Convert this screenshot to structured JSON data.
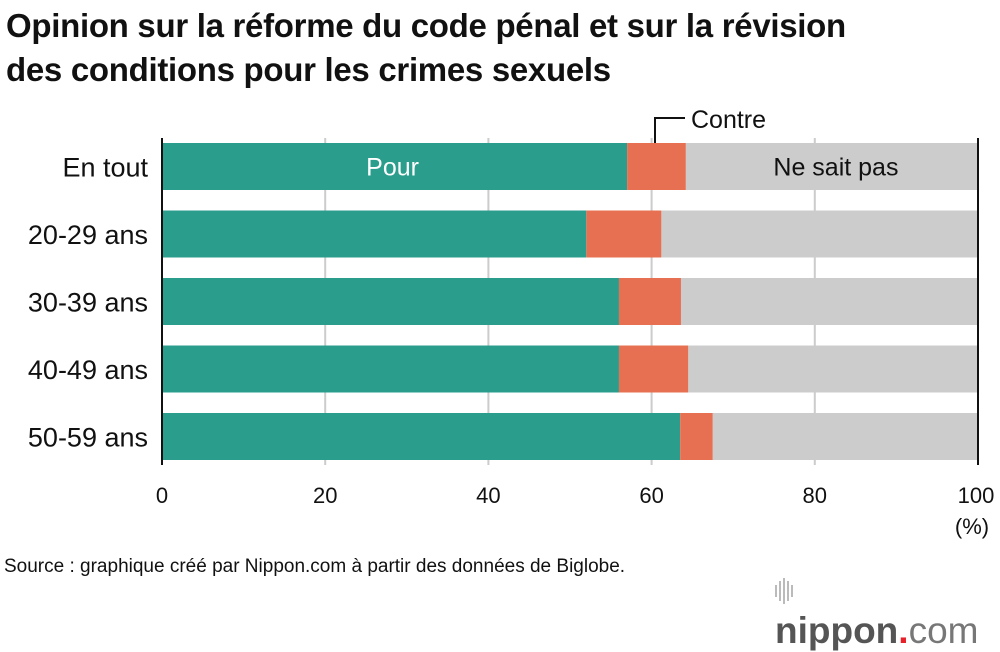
{
  "chart_data": {
    "type": "bar",
    "stacked": true,
    "orientation": "horizontal",
    "title": "Opinion sur la réforme du code pénal et sur la révision des conditions pour les crimes sexuels",
    "categories": [
      "En tout",
      "20-29 ans",
      "30-39 ans",
      "40-49 ans",
      "50-59 ans"
    ],
    "series": [
      {
        "name": "Pour",
        "color": "#2a9d8c",
        "values": [
          57.0,
          52.0,
          56.0,
          56.0,
          63.5
        ]
      },
      {
        "name": "Contre",
        "color": "#e77052",
        "values": [
          7.2,
          9.2,
          7.6,
          8.5,
          4.0
        ]
      },
      {
        "name": "Ne sait pas",
        "color": "#cccccc",
        "values": [
          35.8,
          38.8,
          36.4,
          35.5,
          32.5
        ]
      }
    ],
    "xlim": [
      0,
      100
    ],
    "xticks": [
      "0",
      "20",
      "40",
      "60",
      "80",
      "100"
    ],
    "xunit": "(%)",
    "grid": true,
    "legend": "inline labels on first bar"
  },
  "source": "Source : graphique créé par Nippon.com à partir des données de Biglobe.",
  "logo": {
    "name": "nippon",
    "dot": ".",
    "suffix": "com"
  }
}
